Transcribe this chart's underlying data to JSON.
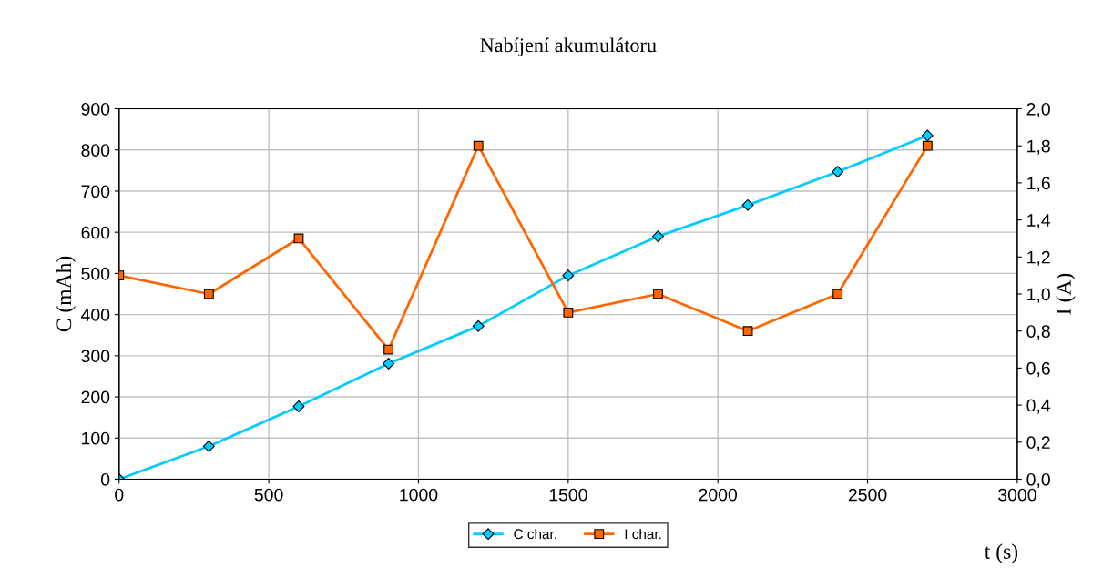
{
  "chart_data": {
    "type": "line",
    "title": "Nabíjení akumulátoru",
    "xlabel": "t (s)",
    "ylabel": "C (mAh)",
    "y2label": "I (A)",
    "x": [
      0,
      300,
      600,
      900,
      1200,
      1500,
      1800,
      2100,
      2400,
      2700
    ],
    "series": [
      {
        "name": "C char.",
        "color": "#00ccff",
        "marker": "diamond",
        "values": [
          0,
          80,
          177,
          281,
          372,
          495,
          590,
          666,
          747,
          835
        ]
      },
      {
        "name": "I char.",
        "color": "#ff6600",
        "marker": "square",
        "axis": "y2",
        "values": [
          1.1,
          1.0,
          1.3,
          0.7,
          1.8,
          0.9,
          1.0,
          0.8,
          1.0,
          1.8
        ]
      }
    ],
    "xlim": [
      0,
      3000
    ],
    "xticks": [
      0,
      500,
      1000,
      1500,
      2000,
      2500,
      3000
    ],
    "ylim": [
      0,
      900
    ],
    "yticks": [
      0,
      100,
      200,
      300,
      400,
      500,
      600,
      700,
      800,
      900
    ],
    "y2lim": [
      0,
      2.0
    ],
    "y2ticks": [
      {
        "value": 0,
        "label": "0,0"
      },
      {
        "value": 0.2,
        "label": "0,2"
      },
      {
        "value": 0.4,
        "label": "0,4"
      },
      {
        "value": 0.6,
        "label": "0,6"
      },
      {
        "value": 0.8,
        "label": "0,8"
      },
      {
        "value": 1.0,
        "label": "1,0"
      },
      {
        "value": 1.2,
        "label": "1,2"
      },
      {
        "value": 1.4,
        "label": "1,4"
      },
      {
        "value": 1.6,
        "label": "1,6"
      },
      {
        "value": 1.8,
        "label": "1,8"
      },
      {
        "value": 2.0,
        "label": "2,0"
      }
    ],
    "grid": true,
    "legend": "bottom",
    "line_style": "solid"
  }
}
